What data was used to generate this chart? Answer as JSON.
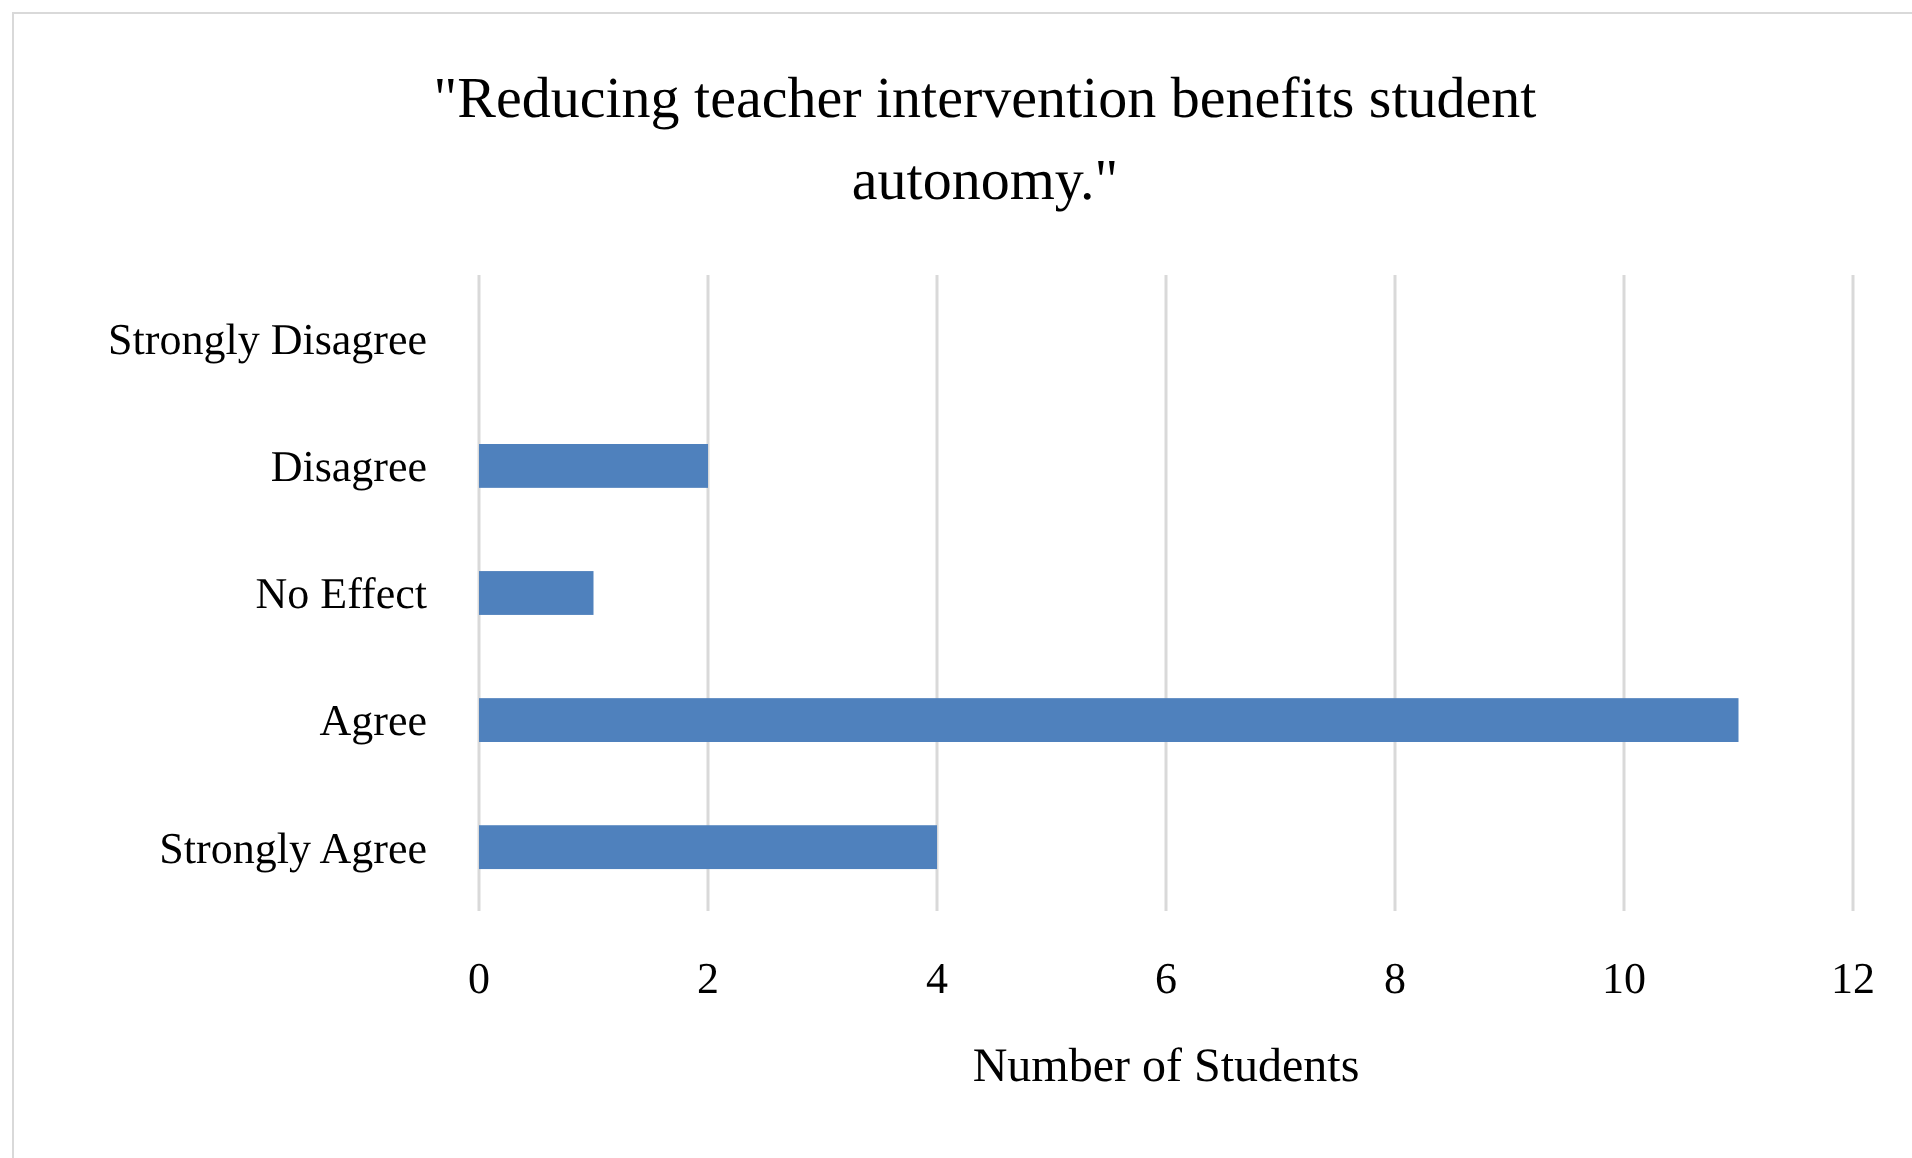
{
  "chart_data": {
    "type": "bar",
    "orientation": "horizontal",
    "title": "\"Reducing teacher intervention benefits student autonomy.\"",
    "categories": [
      "Strongly Disagree",
      "Disagree",
      "No Effect",
      "Agree",
      "Strongly Agree"
    ],
    "values": [
      0,
      2,
      1,
      11,
      4
    ],
    "color": "#4f81bd",
    "xlabel": "Number of Students",
    "xlim": [
      0,
      12
    ],
    "xticks": [
      0,
      2,
      4,
      6,
      8,
      10,
      12
    ],
    "grid": "x"
  }
}
